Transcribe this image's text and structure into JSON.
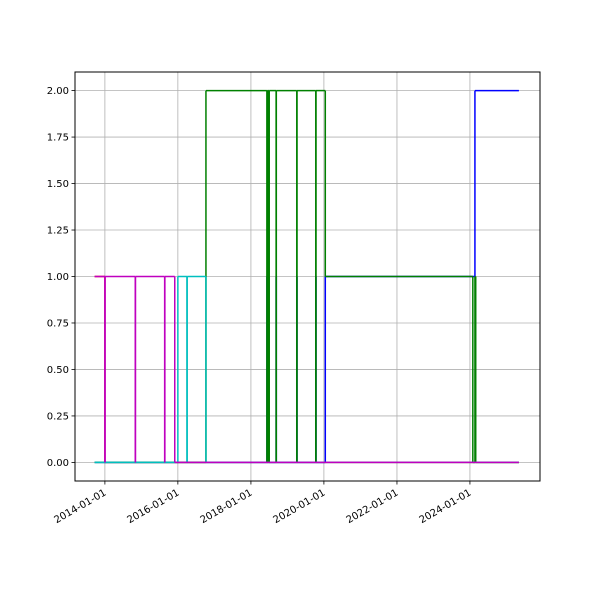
{
  "chart_data": {
    "type": "step",
    "drawstyle": "steps-post",
    "grid": true,
    "xlim": [
      "2013-03-08",
      "2025-12-02"
    ],
    "xticks": [
      "2014-01-01",
      "2016-01-01",
      "2018-01-01",
      "2020-01-01",
      "2022-01-01",
      "2024-01-01"
    ],
    "ylim": [
      -0.1,
      2.1
    ],
    "yticks": [
      {
        "value": 0,
        "label": "0.00"
      },
      {
        "value": 0.25,
        "label": "0.25"
      },
      {
        "value": 0.5,
        "label": "0.50"
      },
      {
        "value": 0.75,
        "label": "0.75"
      },
      {
        "value": 1,
        "label": "1.00"
      },
      {
        "value": 1.25,
        "label": "1.25"
      },
      {
        "value": 1.5,
        "label": "1.50"
      },
      {
        "value": 1.75,
        "label": "1.75"
      },
      {
        "value": 2,
        "label": "2.00"
      }
    ],
    "series": [
      {
        "color": "#ff0000",
        "x": [
          "2013-09-20",
          "2014-01-01",
          "2025-05-05"
        ],
        "values": [
          1,
          0,
          0
        ]
      },
      {
        "color": "#0000ff",
        "x": [
          "2013-09-20",
          "2018-06-10",
          "2018-06-15",
          "2018-06-25",
          "2018-07-01",
          "2018-09-10",
          "2018-09-12",
          "2019-04-05",
          "2019-04-07",
          "2019-10-12",
          "2019-10-14",
          "2020-01-15",
          "2024-02-20",
          "2025-05-05"
        ],
        "values": [
          0,
          1,
          0,
          1,
          0,
          1,
          0,
          1,
          0,
          1,
          0,
          1,
          2,
          2
        ]
      },
      {
        "color": "#008000",
        "x": [
          "2013-09-20",
          "2016-10-08",
          "2018-06-10",
          "2018-06-12",
          "2018-06-20",
          "2018-06-22",
          "2018-07-01",
          "2018-07-03",
          "2018-09-10",
          "2018-09-12",
          "2019-04-05",
          "2019-04-07",
          "2019-10-12",
          "2019-10-14",
          "2020-01-15",
          "2024-01-30",
          "2024-02-20",
          "2024-02-28",
          "2025-05-05"
        ],
        "values": [
          0,
          2,
          0,
          2,
          0,
          2,
          0,
          2,
          0,
          2,
          0,
          2,
          0,
          2,
          1,
          0,
          1,
          0,
          0
        ]
      },
      {
        "color": "#00bfbf",
        "x": [
          "2013-09-20",
          "2016-01-01",
          "2016-04-01",
          "2016-04-03",
          "2016-10-08",
          "2025-05-05"
        ],
        "values": [
          0,
          1,
          0,
          1,
          0,
          0
        ]
      },
      {
        "color": "#bf00bf",
        "x": [
          "2013-09-20",
          "2014-01-01",
          "2014-01-03",
          "2014-11-01",
          "2014-11-03",
          "2015-08-22",
          "2015-08-24",
          "2015-12-01",
          "2025-05-05"
        ],
        "values": [
          1,
          0,
          1,
          0,
          1,
          0,
          1,
          0,
          0
        ]
      }
    ]
  }
}
